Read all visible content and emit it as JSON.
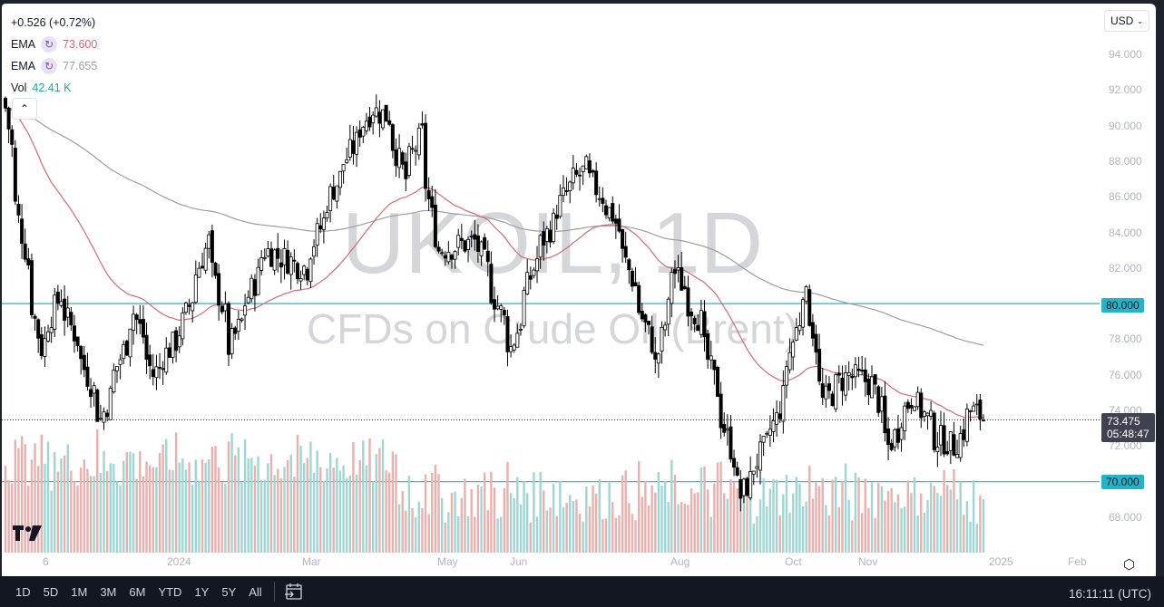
{
  "legend": {
    "change": "+0.526 (+0.72%)",
    "indicators": [
      {
        "name": "EMA",
        "value": "73.600",
        "color": "#d26b74"
      },
      {
        "name": "EMA",
        "value": "77.655",
        "color": "#9b9ea6"
      },
      {
        "name": "Vol",
        "value": "42.41 K",
        "color": "#22ab94"
      }
    ]
  },
  "currency_selector": {
    "value": "USD"
  },
  "watermark": {
    "symbol": "UKOIL, 1D",
    "description": "CFDs on Crude Oil (Brent)"
  },
  "price_axis": {
    "ticks": [
      "94.000",
      "92.000",
      "90.000",
      "88.000",
      "86.000",
      "84.000",
      "82.000",
      "80.000",
      "78.000",
      "76.000",
      "74.000",
      "72.000",
      "70.000",
      "68.000"
    ],
    "horizontal_levels": [
      "80.000",
      "70.000"
    ],
    "last_price": "73.475",
    "countdown": "05:48:47"
  },
  "time_axis": {
    "labels": [
      "6",
      "2024",
      "Mar",
      "May",
      "Jun",
      "Aug",
      "Oct",
      "Nov",
      "2025",
      "Feb"
    ]
  },
  "bottom_bar": {
    "ranges": [
      "1D",
      "5D",
      "1M",
      "3M",
      "6M",
      "YTD",
      "1Y",
      "5Y",
      "All"
    ],
    "clock": "16:11:11 (UTC)"
  },
  "colors": {
    "level_line": "#22b5c9",
    "ema_fast": "#d26b74",
    "ema_slow": "#9b9ea6",
    "vol_up": "#9fd6d3",
    "vol_down": "#eab0ae",
    "candle": "#000000"
  },
  "chart_data": {
    "type": "candlestick",
    "title": "UKOIL, 1D — CFDs on Crude Oil (Brent)",
    "xlabel": "",
    "ylabel": "USD",
    "ylim": [
      66.5,
      95.5
    ],
    "grid": false,
    "legend_position": "top-left",
    "x_ticks": [
      "6 (Nov 2023)",
      "2024",
      "Mar",
      "May",
      "Jun",
      "Aug",
      "Oct",
      "Nov",
      "2025",
      "Feb"
    ],
    "approx_close_path": [
      {
        "date": "2023-11-01",
        "close": 91.0
      },
      {
        "date": "2023-11-06",
        "close": 85.5
      },
      {
        "date": "2023-11-16",
        "close": 77.5
      },
      {
        "date": "2023-11-24",
        "close": 80.5
      },
      {
        "date": "2023-12-01",
        "close": 78.0
      },
      {
        "date": "2023-12-12",
        "close": 73.5
      },
      {
        "date": "2023-12-26",
        "close": 79.5
      },
      {
        "date": "2024-01-03",
        "close": 76.0
      },
      {
        "date": "2024-01-15",
        "close": 78.5
      },
      {
        "date": "2024-01-26",
        "close": 83.5
      },
      {
        "date": "2024-02-05",
        "close": 77.5
      },
      {
        "date": "2024-02-20",
        "close": 83.0
      },
      {
        "date": "2024-03-08",
        "close": 82.0
      },
      {
        "date": "2024-03-20",
        "close": 86.5
      },
      {
        "date": "2024-04-05",
        "close": 91.0
      },
      {
        "date": "2024-04-12",
        "close": 90.5
      },
      {
        "date": "2024-04-19",
        "close": 87.0
      },
      {
        "date": "2024-04-26",
        "close": 89.5
      },
      {
        "date": "2024-05-03",
        "close": 83.0
      },
      {
        "date": "2024-05-20",
        "close": 83.5
      },
      {
        "date": "2024-06-04",
        "close": 77.5
      },
      {
        "date": "2024-06-14",
        "close": 82.5
      },
      {
        "date": "2024-06-28",
        "close": 86.5
      },
      {
        "date": "2024-07-05",
        "close": 87.5
      },
      {
        "date": "2024-07-17",
        "close": 85.0
      },
      {
        "date": "2024-08-05",
        "close": 76.5
      },
      {
        "date": "2024-08-12",
        "close": 82.0
      },
      {
        "date": "2024-08-23",
        "close": 79.0
      },
      {
        "date": "2024-09-10",
        "close": 69.2
      },
      {
        "date": "2024-09-25",
        "close": 73.5
      },
      {
        "date": "2024-10-07",
        "close": 81.0
      },
      {
        "date": "2024-10-15",
        "close": 74.5
      },
      {
        "date": "2024-10-25",
        "close": 76.0
      },
      {
        "date": "2024-11-05",
        "close": 75.5
      },
      {
        "date": "2024-11-12",
        "close": 72.0
      },
      {
        "date": "2024-11-22",
        "close": 75.0
      },
      {
        "date": "2024-12-02",
        "close": 72.5
      },
      {
        "date": "2024-12-10",
        "close": 72.0
      },
      {
        "date": "2024-12-17",
        "close": 74.0
      },
      {
        "date": "2024-12-23",
        "close": 73.475
      }
    ],
    "series": [
      {
        "name": "EMA (fast)",
        "last": 73.6,
        "color": "#d26b74"
      },
      {
        "name": "EMA (slow)",
        "last": 77.655,
        "color": "#9b9ea6"
      },
      {
        "name": "Volume",
        "last": "42.41 K"
      }
    ],
    "horizontal_lines": [
      80.0,
      70.0
    ],
    "last_price": 73.475,
    "change": "+0.526 (+0.72%)"
  }
}
